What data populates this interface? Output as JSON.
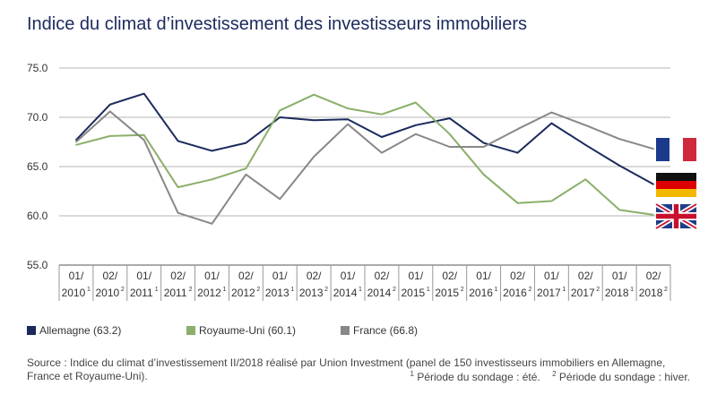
{
  "title": "Indice du climat d’investissement des investisseurs immobiliers",
  "chart_data": {
    "type": "line",
    "ylim": [
      55.0,
      75.0
    ],
    "yticks": [
      "75.0",
      "70.0",
      "65.0",
      "60.0",
      "55.0"
    ],
    "ytick_values": [
      75,
      70,
      65,
      60,
      55
    ],
    "categories": [
      {
        "top": "01/",
        "bottom": "2010",
        "sup": "1"
      },
      {
        "top": "02/",
        "bottom": "2010",
        "sup": "2"
      },
      {
        "top": "01/",
        "bottom": "2011",
        "sup": "1"
      },
      {
        "top": "02/",
        "bottom": "2011",
        "sup": "2"
      },
      {
        "top": "01/",
        "bottom": "2012",
        "sup": "1"
      },
      {
        "top": "02/",
        "bottom": "2012",
        "sup": "2"
      },
      {
        "top": "01/",
        "bottom": "2013",
        "sup": "1"
      },
      {
        "top": "02/",
        "bottom": "2013",
        "sup": "2"
      },
      {
        "top": "01/",
        "bottom": "2014",
        "sup": "1"
      },
      {
        "top": "02/",
        "bottom": "2014",
        "sup": "2"
      },
      {
        "top": "01/",
        "bottom": "2015",
        "sup": "1"
      },
      {
        "top": "02/",
        "bottom": "2015",
        "sup": "2"
      },
      {
        "top": "01/",
        "bottom": "2016",
        "sup": "1"
      },
      {
        "top": "02/",
        "bottom": "2016",
        "sup": "2"
      },
      {
        "top": "01/",
        "bottom": "2017",
        "sup": "1"
      },
      {
        "top": "02/",
        "bottom": "2017",
        "sup": "2"
      },
      {
        "top": "01/",
        "bottom": "2018",
        "sup": "1"
      },
      {
        "top": "02/",
        "bottom": "2018",
        "sup": "2"
      }
    ],
    "series": [
      {
        "name": "Allemagne",
        "color": "#1b2a5c",
        "values": [
          67.7,
          71.3,
          72.4,
          67.6,
          66.6,
          67.4,
          70.0,
          69.7,
          69.8,
          68.0,
          69.2,
          69.9,
          67.4,
          66.4,
          69.4,
          67.2,
          65.1,
          63.2
        ]
      },
      {
        "name": "Royaume-Uni",
        "color": "#8ab06a",
        "values": [
          67.2,
          68.1,
          68.2,
          62.9,
          63.7,
          64.8,
          70.7,
          72.3,
          70.9,
          70.3,
          71.5,
          68.3,
          64.2,
          61.3,
          61.5,
          63.7,
          60.6,
          60.1
        ]
      },
      {
        "name": "France",
        "color": "#888888",
        "values": [
          67.5,
          70.6,
          67.7,
          60.3,
          59.2,
          64.2,
          61.7,
          66.0,
          69.3,
          66.4,
          68.3,
          67.0,
          67.0,
          68.8,
          70.5,
          69.2,
          67.8,
          66.8
        ]
      }
    ]
  },
  "legend": [
    {
      "label": "Allemagne (63.2)",
      "color": "#1b2a5c"
    },
    {
      "label": "Royaume-Uni (60.1)",
      "color": "#8ab06a"
    },
    {
      "label": "France (66.8)",
      "color": "#888888"
    }
  ],
  "flags": [
    {
      "icon": "flag-france-icon",
      "country": "France"
    },
    {
      "icon": "flag-germany-icon",
      "country": "Allemagne"
    },
    {
      "icon": "flag-uk-icon",
      "country": "Royaume-Uni"
    }
  ],
  "source": "Source : Indice du climat d’investissement II/2018 réalisé par Union Investment (panel de 150 investisseurs immobiliers en Allemagne, France et Royaume-Uni).",
  "footnote": {
    "n1": "1",
    "text1": " Période du sondage : été.",
    "n2": "2",
    "text2": " Période du sondage : hiver."
  }
}
